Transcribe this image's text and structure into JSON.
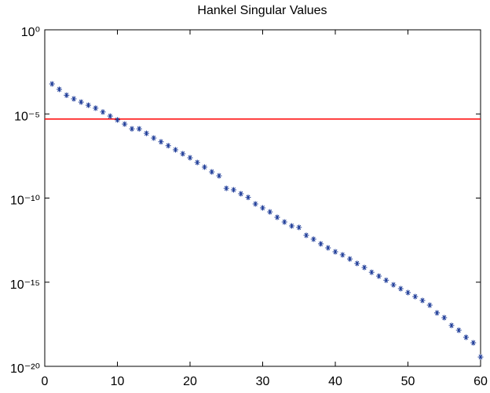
{
  "chart_data": {
    "type": "scatter",
    "title": "Hankel Singular Values",
    "log_y": true,
    "grid": false,
    "x": [
      1,
      2,
      3,
      4,
      5,
      6,
      7,
      8,
      9,
      10,
      11,
      12,
      13,
      14,
      15,
      16,
      17,
      18,
      19,
      20,
      21,
      22,
      23,
      24,
      25,
      26,
      27,
      28,
      29,
      30,
      31,
      32,
      33,
      34,
      35,
      36,
      37,
      38,
      39,
      40,
      41,
      42,
      43,
      44,
      45,
      46,
      47,
      48,
      49,
      50,
      51,
      52,
      53,
      54,
      55,
      56,
      57,
      58,
      59,
      60
    ],
    "series": [
      {
        "color": "#1f3d99",
        "values": [
          0.00061,
          0.00029,
          0.00013,
          7.9e-05,
          5.1e-05,
          3.3e-05,
          2.2e-05,
          1.3e-05,
          7.4e-06,
          4.4e-06,
          2.5e-06,
          1.3e-06,
          1.3e-06,
          7e-07,
          3.7e-07,
          2.2e-07,
          1.3e-07,
          7.4e-08,
          4.3e-08,
          2.5e-08,
          1.3e-08,
          6.9e-09,
          3.6e-09,
          2.1e-09,
          3.8e-10,
          3.1e-10,
          1.8e-10,
          1.1e-10,
          4.5e-11,
          2.6e-11,
          1.5e-11,
          7.2e-12,
          3.8e-12,
          2.2e-12,
          1.8e-12,
          6.1e-13,
          3.6e-13,
          1.9e-13,
          1.1e-13,
          6.4e-14,
          4.2e-14,
          2.4e-14,
          1.3e-14,
          7.5e-15,
          3.9e-15,
          2.3e-15,
          1.3e-15,
          7e-16,
          4.1e-16,
          2.4e-16,
          1.4e-16,
          8.2e-17,
          4.3e-17,
          1.5e-17,
          7.8e-18,
          2.7e-18,
          1.4e-18,
          5.3e-19,
          2.5e-19,
          3.6e-20
        ]
      }
    ],
    "reference_line": {
      "value": 5e-06,
      "color": "#ff0000"
    },
    "xlim": [
      0,
      60
    ],
    "xticks": [
      0,
      10,
      20,
      30,
      40,
      50,
      60
    ],
    "ylim": [
      1e-20,
      1
    ],
    "yticks": [
      {
        "value": 1e-20,
        "label": "10⁻²⁰"
      },
      {
        "value": 1e-15,
        "label": "10⁻¹⁵"
      },
      {
        "value": 1e-10,
        "label": "10⁻¹⁰"
      },
      {
        "value": 1e-05,
        "label": "10⁻⁵"
      },
      {
        "value": 1,
        "label": "10⁰"
      }
    ]
  }
}
